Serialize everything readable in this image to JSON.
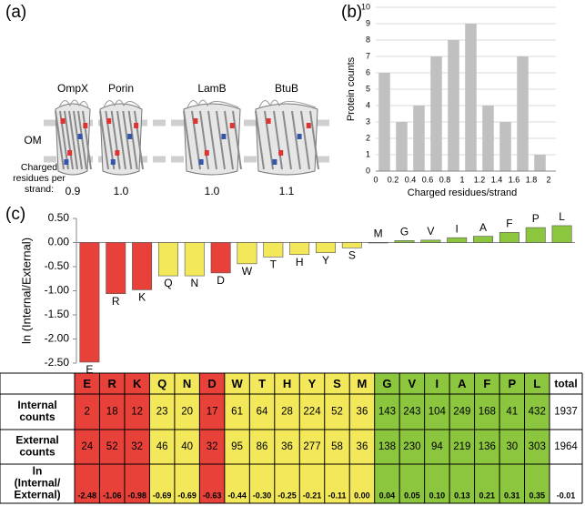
{
  "panel_a": {
    "label": "(a)",
    "proteins": [
      "OmpX",
      "Porin",
      "LamB",
      "BtuB"
    ],
    "membrane_label": "OM",
    "charge_caption": "Charged residues per strand:",
    "charge_values": [
      "0.9",
      "1.0",
      "1.0",
      "1.1"
    ]
  },
  "chart_data": [
    {
      "type": "histogram",
      "label": "(b)",
      "x_label": "Charged residues/strand",
      "y_label": "Protein counts",
      "color": "#c0c0c0",
      "bins": [
        0,
        0.2,
        0.4,
        0.6,
        0.8,
        1,
        1.2,
        1.4,
        1.6,
        1.8,
        2
      ],
      "counts": [
        6,
        3,
        4,
        7,
        8,
        9,
        4,
        3,
        7,
        1
      ],
      "xlim": [
        0,
        2
      ],
      "xticks": [
        0,
        0.2,
        0.4,
        0.6,
        0.8,
        1,
        1.2,
        1.4,
        1.6,
        1.8,
        2
      ],
      "ylim": [
        0,
        10
      ],
      "yticks": [
        0,
        1,
        2,
        3,
        4,
        5,
        6,
        7,
        8,
        9,
        10
      ],
      "grid": true
    },
    {
      "type": "bar",
      "label": "(c)",
      "y_label": "ln (Internal/External)",
      "categories": [
        "E",
        "R",
        "K",
        "Q",
        "N",
        "D",
        "W",
        "T",
        "H",
        "Y",
        "S",
        "M",
        "G",
        "V",
        "I",
        "A",
        "F",
        "P",
        "L"
      ],
      "values": [
        -2.48,
        -1.06,
        -0.98,
        -0.69,
        -0.69,
        -0.63,
        -0.44,
        -0.3,
        -0.25,
        -0.21,
        -0.11,
        0.0,
        0.04,
        0.05,
        0.1,
        0.13,
        0.21,
        0.31,
        0.35
      ],
      "value_labels": [
        "-2.48",
        "-1.06",
        "-0.98",
        "-0.69",
        "-0.69",
        "-0.63",
        "-0.44",
        "-0.30",
        "-0.25",
        "-0.21",
        "-0.11",
        "0.00",
        "0.04",
        "0.05",
        "0.10",
        "0.13",
        "0.21",
        "0.31",
        "0.35"
      ],
      "colors": [
        "#e8413a",
        "#e8413a",
        "#e8413a",
        "#f3e85a",
        "#f3e85a",
        "#e8413a",
        "#f3e85a",
        "#f3e85a",
        "#f3e85a",
        "#f3e85a",
        "#f3e85a",
        "#f3e85a",
        "#8cc63f",
        "#8cc63f",
        "#8cc63f",
        "#8cc63f",
        "#8cc63f",
        "#8cc63f",
        "#8cc63f"
      ],
      "ylim": [
        -2.5,
        0.5
      ],
      "yticks": [
        {
          "value": 0.5,
          "label": "0.50"
        },
        {
          "value": 0,
          "label": "0.00"
        },
        {
          "value": -0.5,
          "label": "-0.50"
        },
        {
          "value": -1,
          "label": "-1.00"
        },
        {
          "value": -1.5,
          "label": "-1.50"
        },
        {
          "value": -2,
          "label": "-2.00"
        },
        {
          "value": -2.5,
          "label": "-2.50"
        }
      ]
    }
  ],
  "table": {
    "total_header": "total",
    "rows": [
      {
        "label": "Internal counts",
        "values": [
          2,
          18,
          12,
          23,
          20,
          17,
          61,
          64,
          28,
          224,
          52,
          36,
          143,
          243,
          104,
          249,
          168,
          41,
          432
        ],
        "total": 1937
      },
      {
        "label": "External counts",
        "values": [
          24,
          52,
          32,
          46,
          40,
          32,
          95,
          86,
          36,
          277,
          58,
          36,
          138,
          230,
          94,
          219,
          136,
          30,
          303
        ],
        "total": 1964
      },
      {
        "label": "ln (Internal/ External)",
        "total": -0.01
      }
    ]
  }
}
